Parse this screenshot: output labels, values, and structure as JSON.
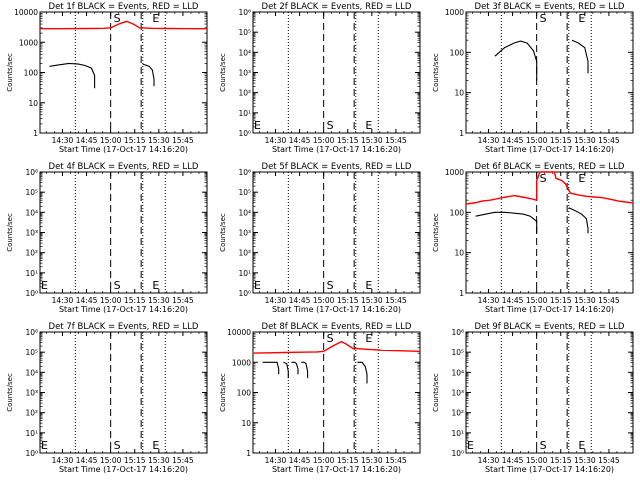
{
  "shared": {
    "xlabel": "Start Time (17-Oct-17 14:16:20)",
    "ylabel": "Counts/sec",
    "xticks": [
      "14:30",
      "14:45",
      "15:00",
      "15:15",
      "15:30",
      "15:45"
    ],
    "xtick_minutes": [
      14,
      29,
      44,
      59,
      74,
      89
    ],
    "xlim_minutes": [
      0,
      104
    ],
    "markers": {
      "dotted_minutes": [
        22,
        64,
        78
      ],
      "dashed_minutes": [
        44,
        63
      ],
      "S_label": "S",
      "S_minute": 44,
      "E_label": "E",
      "E_minute": 70,
      "E_left_label": "E"
    },
    "colors": {
      "events": "#000000",
      "lld": "#ff0000"
    }
  },
  "chart_data": [
    {
      "type": "line",
      "title": "Det 1f BLACK = Events, RED = LLD",
      "yscale": "log",
      "ylim": [
        1,
        10000
      ],
      "ytick_values": [
        1,
        10,
        100,
        1000,
        10000
      ],
      "ytick_labels": [
        "1",
        "10",
        "100",
        "1000",
        "10000"
      ],
      "show_left_E": false,
      "series": [
        {
          "color": "lld",
          "points": [
            [
              0,
              2800
            ],
            [
              15,
              2800
            ],
            [
              30,
              2850
            ],
            [
              40,
              2900
            ],
            [
              44,
              3000
            ],
            [
              50,
              4200
            ],
            [
              54,
              4900
            ],
            [
              58,
              4000
            ],
            [
              62,
              3000
            ],
            [
              70,
              2900
            ],
            [
              80,
              2850
            ],
            [
              95,
              2800
            ],
            [
              104,
              2800
            ]
          ]
        },
        {
          "color": "events",
          "points": [
            [
              6,
              160
            ],
            [
              12,
              180
            ],
            [
              18,
              200
            ],
            [
              24,
              190
            ],
            [
              28,
              170
            ],
            [
              32,
              140
            ],
            [
              34,
              80
            ],
            [
              34,
              30
            ]
          ]
        },
        {
          "color": "events",
          "points": [
            [
              64,
              190
            ],
            [
              68,
              160
            ],
            [
              70,
              120
            ],
            [
              71,
              60
            ],
            [
              71,
              35
            ]
          ]
        }
      ]
    },
    {
      "type": "line",
      "title": "Det 2f BLACK = Events, RED = LLD",
      "yscale": "log",
      "ylim": [
        1,
        1000000
      ],
      "ytick_values": [
        1,
        10,
        100,
        1000,
        10000,
        100000,
        1000000
      ],
      "ytick_labels": [
        "10⁰",
        "10¹",
        "10²",
        "10³",
        "10⁴",
        "10⁵",
        "10⁶"
      ],
      "show_left_E": true,
      "series": []
    },
    {
      "type": "line",
      "title": "Det 3f BLACK = Events, RED = LLD",
      "yscale": "log",
      "ylim": [
        1,
        1000
      ],
      "ytick_values": [
        1,
        10,
        100,
        1000
      ],
      "ytick_labels": [
        "1",
        "10",
        "100",
        "1000"
      ],
      "show_left_E": false,
      "series": [
        {
          "color": "events",
          "points": [
            [
              18,
              80
            ],
            [
              24,
              130
            ],
            [
              30,
              170
            ],
            [
              34,
              190
            ],
            [
              38,
              170
            ],
            [
              42,
              110
            ],
            [
              44,
              60
            ],
            [
              44,
              20
            ]
          ]
        },
        {
          "color": "events",
          "points": [
            [
              66,
              200
            ],
            [
              70,
              170
            ],
            [
              74,
              130
            ],
            [
              76,
              60
            ],
            [
              76,
              30
            ]
          ]
        }
      ]
    },
    {
      "type": "line",
      "title": "Det 4f BLACK = Events, RED = LLD",
      "yscale": "log",
      "ylim": [
        1,
        1000000
      ],
      "ytick_values": [
        1,
        10,
        100,
        1000,
        10000,
        100000,
        1000000
      ],
      "ytick_labels": [
        "10⁰",
        "10¹",
        "10²",
        "10³",
        "10⁴",
        "10⁵",
        "10⁶"
      ],
      "show_left_E": true,
      "series": []
    },
    {
      "type": "line",
      "title": "Det 5f BLACK = Events, RED = LLD",
      "yscale": "log",
      "ylim": [
        1,
        1000000
      ],
      "ytick_values": [
        1,
        10,
        100,
        1000,
        10000,
        100000,
        1000000
      ],
      "ytick_labels": [
        "10⁰",
        "10¹",
        "10²",
        "10³",
        "10⁴",
        "10⁵",
        "10⁶"
      ],
      "show_left_E": true,
      "series": []
    },
    {
      "type": "line",
      "title": "Det 6f BLACK = Events, RED = LLD",
      "yscale": "log",
      "ylim": [
        1,
        1000
      ],
      "ytick_values": [
        1,
        10,
        100,
        1000
      ],
      "ytick_labels": [
        "1",
        "10",
        "100",
        "1000"
      ],
      "show_left_E": false,
      "series": [
        {
          "color": "lld",
          "points": [
            [
              0,
              160
            ],
            [
              5,
              170
            ],
            [
              10,
              190
            ],
            [
              15,
              200
            ],
            [
              20,
              220
            ],
            [
              25,
              240
            ],
            [
              30,
              260
            ],
            [
              35,
              240
            ],
            [
              40,
              220
            ],
            [
              44,
              200
            ],
            [
              44,
              600
            ],
            [
              46,
              1000
            ],
            [
              50,
              1000
            ],
            [
              55,
              1000
            ],
            [
              56,
              700
            ],
            [
              60,
              600
            ],
            [
              62,
              500
            ],
            [
              65,
              300
            ],
            [
              70,
              270
            ],
            [
              75,
              250
            ],
            [
              80,
              240
            ],
            [
              85,
              230
            ],
            [
              90,
              210
            ],
            [
              95,
              190
            ],
            [
              104,
              170
            ]
          ]
        },
        {
          "color": "events",
          "points": [
            [
              6,
              80
            ],
            [
              12,
              90
            ],
            [
              18,
              100
            ],
            [
              24,
              100
            ],
            [
              30,
              95
            ],
            [
              36,
              90
            ],
            [
              40,
              80
            ],
            [
              44,
              60
            ],
            [
              44,
              30
            ]
          ]
        },
        {
          "color": "events",
          "points": [
            [
              64,
              130
            ],
            [
              68,
              110
            ],
            [
              72,
              90
            ],
            [
              75,
              70
            ],
            [
              76,
              40
            ],
            [
              76,
              30
            ]
          ]
        }
      ]
    },
    {
      "type": "line",
      "title": "Det 7f BLACK = Events, RED = LLD",
      "yscale": "log",
      "ylim": [
        1,
        1000000
      ],
      "ytick_values": [
        1,
        10,
        100,
        1000,
        10000,
        100000,
        1000000
      ],
      "ytick_labels": [
        "10⁰",
        "10¹",
        "10²",
        "10³",
        "10⁴",
        "10⁵",
        "10⁶"
      ],
      "show_left_E": true,
      "series": []
    },
    {
      "type": "line",
      "title": "Det 8f BLACK = Events, RED = LLD",
      "yscale": "log",
      "ylim": [
        1,
        10000
      ],
      "ytick_values": [
        1,
        10,
        100,
        1000,
        10000
      ],
      "ytick_labels": [
        "1",
        "10",
        "100",
        "1000",
        "10000"
      ],
      "show_left_E": false,
      "series": [
        {
          "color": "lld",
          "points": [
            [
              0,
              2000
            ],
            [
              10,
              2050
            ],
            [
              20,
              2100
            ],
            [
              30,
              2150
            ],
            [
              40,
              2200
            ],
            [
              44,
              2300
            ],
            [
              50,
              3500
            ],
            [
              55,
              4800
            ],
            [
              58,
              4000
            ],
            [
              62,
              2900
            ],
            [
              70,
              2700
            ],
            [
              80,
              2500
            ],
            [
              90,
              2400
            ],
            [
              104,
              2300
            ]
          ]
        },
        {
          "color": "events",
          "points": [
            [
              6,
              1000
            ],
            [
              10,
              1000
            ],
            [
              15,
              1000
            ],
            [
              16,
              600
            ],
            [
              16,
              400
            ]
          ]
        },
        {
          "color": "events",
          "points": [
            [
              19,
              1000
            ],
            [
              21,
              900
            ],
            [
              22,
              500
            ],
            [
              22,
              300
            ]
          ]
        },
        {
          "color": "events",
          "points": [
            [
              24,
              1000
            ],
            [
              26,
              1000
            ],
            [
              27,
              900
            ],
            [
              28,
              600
            ],
            [
              28,
              400
            ]
          ]
        },
        {
          "color": "events",
          "points": [
            [
              30,
              1000
            ],
            [
              32,
              1000
            ],
            [
              33,
              900
            ],
            [
              34,
              500
            ],
            [
              34,
              300
            ]
          ]
        },
        {
          "color": "events",
          "points": [
            [
              65,
              1000
            ],
            [
              68,
              1000
            ],
            [
              70,
              700
            ],
            [
              71,
              400
            ],
            [
              71,
              200
            ]
          ]
        }
      ]
    },
    {
      "type": "line",
      "title": "Det 9f BLACK = Events, RED = LLD",
      "yscale": "log",
      "ylim": [
        1,
        1000000
      ],
      "ytick_values": [
        1,
        10,
        100,
        1000,
        10000,
        100000,
        1000000
      ],
      "ytick_labels": [
        "10⁰",
        "10¹",
        "10²",
        "10³",
        "10⁴",
        "10⁵",
        "10⁶"
      ],
      "show_left_E": true,
      "series": []
    }
  ]
}
